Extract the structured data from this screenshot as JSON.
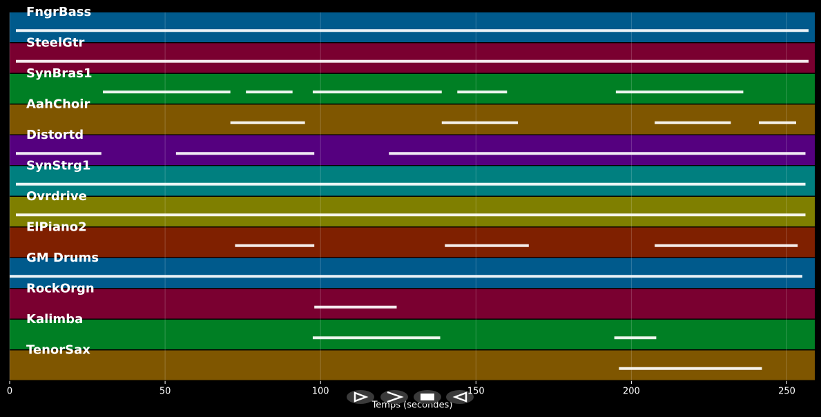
{
  "chart_data": {
    "type": "timeline",
    "x_label": "Temps (secondes)",
    "xlim": [
      0,
      259
    ],
    "xticks": [
      0,
      50,
      100,
      150,
      200,
      250
    ],
    "grid": true,
    "series": [
      {
        "name": "FngrBass",
        "color": "#005a8c",
        "segments": [
          [
            2,
            257
          ]
        ]
      },
      {
        "name": "SteelGtr",
        "color": "#7a0030",
        "segments": [
          [
            2,
            257
          ]
        ]
      },
      {
        "name": "SynBras1",
        "color": "#007f24",
        "segments": [
          [
            30,
            71
          ],
          [
            76,
            91
          ],
          [
            97.5,
            139
          ],
          [
            144,
            160
          ],
          [
            195,
            236
          ]
        ]
      },
      {
        "name": "AahChoir",
        "color": "#7f5600",
        "segments": [
          [
            71,
            95
          ],
          [
            139,
            163.5
          ],
          [
            207.5,
            232
          ],
          [
            241,
            253
          ]
        ]
      },
      {
        "name": "Distortd",
        "color": "#55007f",
        "segments": [
          [
            2,
            29.5
          ],
          [
            53.5,
            98
          ],
          [
            122,
            256
          ]
        ]
      },
      {
        "name": "SynStrg1",
        "color": "#007f7f",
        "segments": [
          [
            2,
            256
          ]
        ]
      },
      {
        "name": "Ovrdrive",
        "color": "#7f7f00",
        "segments": [
          [
            2,
            256
          ]
        ]
      },
      {
        "name": "ElPiano2",
        "color": "#7f2000",
        "segments": [
          [
            72.5,
            98
          ],
          [
            140,
            167
          ],
          [
            207.5,
            253.5
          ]
        ]
      },
      {
        "name": "GM Drums",
        "color": "#005a8c",
        "segments": [
          [
            0,
            255
          ]
        ]
      },
      {
        "name": "RockOrgn",
        "color": "#7a0030",
        "segments": [
          [
            98,
            124.5
          ]
        ]
      },
      {
        "name": "Kalimba",
        "color": "#007f24",
        "segments": [
          [
            97.5,
            138.5
          ],
          [
            194.5,
            208
          ]
        ]
      },
      {
        "name": "TenorSax",
        "color": "#7f5600",
        "segments": [
          [
            196,
            242
          ]
        ]
      }
    ]
  }
}
